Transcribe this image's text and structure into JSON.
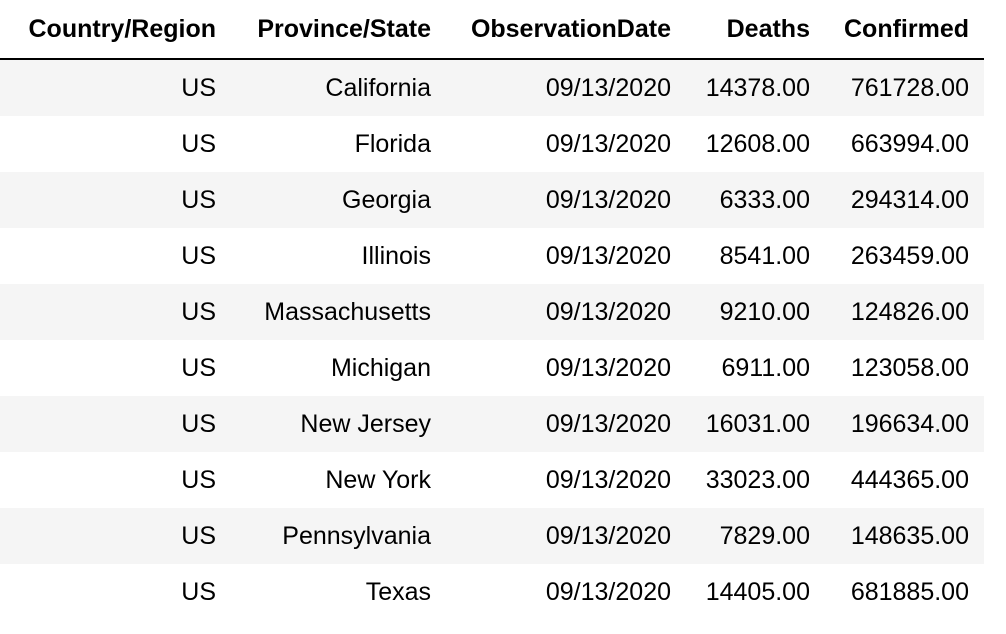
{
  "table": {
    "headers": [
      "Country/Region",
      "Province/State",
      "ObservationDate",
      "Deaths",
      "Confirmed"
    ],
    "rows": [
      [
        "US",
        "California",
        "09/13/2020",
        "14378.00",
        "761728.00"
      ],
      [
        "US",
        "Florida",
        "09/13/2020",
        "12608.00",
        "663994.00"
      ],
      [
        "US",
        "Georgia",
        "09/13/2020",
        "6333.00",
        "294314.00"
      ],
      [
        "US",
        "Illinois",
        "09/13/2020",
        "8541.00",
        "263459.00"
      ],
      [
        "US",
        "Massachusetts",
        "09/13/2020",
        "9210.00",
        "124826.00"
      ],
      [
        "US",
        "Michigan",
        "09/13/2020",
        "6911.00",
        "123058.00"
      ],
      [
        "US",
        "New Jersey",
        "09/13/2020",
        "16031.00",
        "196634.00"
      ],
      [
        "US",
        "New York",
        "09/13/2020",
        "33023.00",
        "444365.00"
      ],
      [
        "US",
        "Pennsylvania",
        "09/13/2020",
        "7829.00",
        "148635.00"
      ],
      [
        "US",
        "Texas",
        "09/13/2020",
        "14405.00",
        "681885.00"
      ]
    ]
  }
}
